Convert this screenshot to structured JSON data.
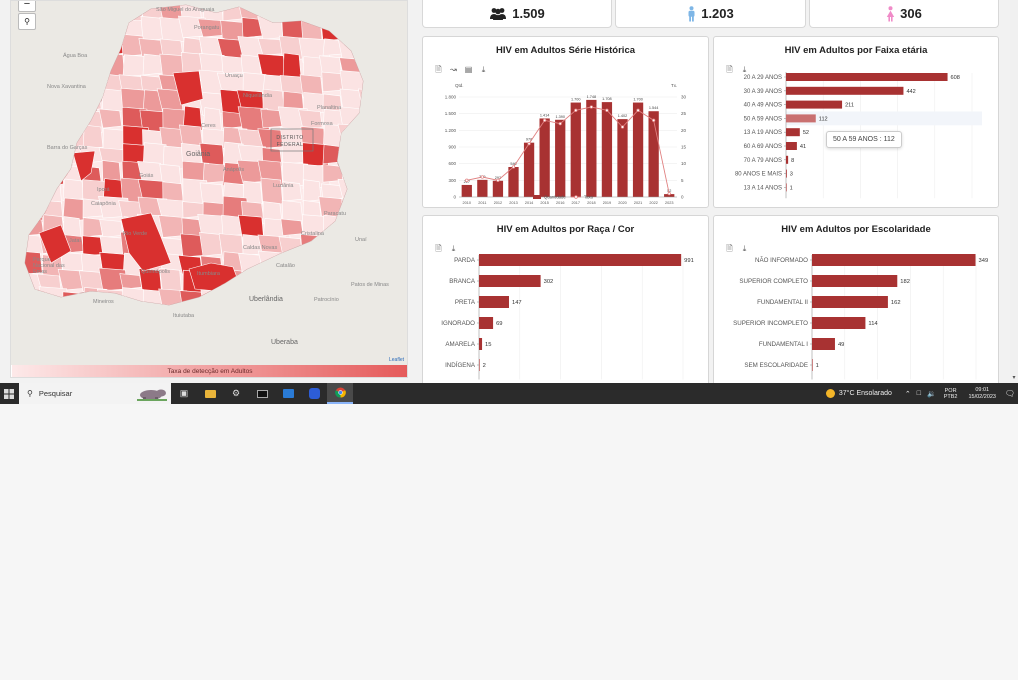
{
  "kpis": [
    {
      "value": "1.509",
      "icon": "people-group-icon",
      "color": "#222222"
    },
    {
      "value": "1.203",
      "icon": "male-person-icon",
      "color": "#7eb6e6"
    },
    {
      "value": "306",
      "icon": "female-person-icon",
      "color": "#f08bc8"
    }
  ],
  "map": {
    "zoom_out_symbol": "−",
    "search_symbol": "🔍",
    "places": [
      "São Miguel do Araguaia",
      "Água Boa",
      "Nova Xavantina",
      "Barra do Garças",
      "Mineiros",
      "Parque Nacional das Emas",
      "Jataí",
      "Rio Verde",
      "Goiás",
      "Goiânia",
      "Anápolis",
      "Catalão",
      "Uberlândia",
      "Uberaba",
      "Paracatu",
      "Patrocínio",
      "Patos de Minas",
      "Caldas Novas",
      "Itumbiara",
      "Formosa",
      "Planaltina",
      "Iporá",
      "Luziânia",
      "Ituiutaba",
      "Quirinópolis",
      "Cristalina",
      "Unaí",
      "Porangatu",
      "Niquelândia",
      "Ceres",
      "Uruaçu",
      "Caiapônia"
    ],
    "district_label": "DISTRITO FEDERAL",
    "attribution": "Leaflet",
    "legend_label": "Taxa de detecção em Adultos",
    "colors": {
      "low": "#fde9e9",
      "high": "#d9302f",
      "base": "#ebe9e4"
    }
  },
  "serie_historica": {
    "title": "HIV em Adultos Série Histórica",
    "toolbar": [
      "document-icon",
      "line-chart-icon",
      "bar-chart-icon",
      "download-icon"
    ],
    "left_axis_title": "Qtd.",
    "right_axis_title": "Tx.",
    "legend": [
      "Quantidade",
      "Taxa"
    ]
  },
  "faixa_etaria": {
    "title": "HIV em Adultos por Faixa etária",
    "toolbar": [
      "document-icon",
      "download-icon"
    ],
    "tooltip": "50 A 59 ANOS : 112"
  },
  "raca_cor": {
    "title": "HIV em Adultos por Raça / Cor",
    "toolbar": [
      "document-icon",
      "download-icon"
    ]
  },
  "escolaridade": {
    "title": "HIV em Adultos por Escolaridade",
    "toolbar": [
      "document-icon",
      "download-icon"
    ]
  },
  "chart_data": [
    {
      "type": "bar",
      "title": "HIV em Adultos Série Histórica",
      "categories": [
        "2010",
        "2011",
        "2012",
        "2013",
        "2014",
        "2015",
        "2016",
        "2017",
        "2018",
        "2019",
        "2020",
        "2021",
        "2022",
        "2023"
      ],
      "series": [
        {
          "name": "Quantidade",
          "type": "bar",
          "values": [
            217,
            309,
            292,
            540,
            978,
            1414,
            1390,
            1700,
            1748,
            1708,
            1402,
            1700,
            1544,
            52
          ]
        },
        {
          "name": "Taxa",
          "type": "line",
          "axis": "right",
          "values": [
            5,
            6,
            5,
            9,
            16,
            23,
            22,
            26,
            27,
            26,
            21,
            26,
            23,
            1
          ]
        }
      ],
      "ylim": [
        0,
        1800
      ],
      "yticks": [
        0,
        300,
        600,
        900,
        1200,
        1500,
        1800
      ],
      "ytick_labels": [
        "0",
        "300",
        "600",
        "900",
        "1.200",
        "1.500",
        "1.800"
      ],
      "y2lim": [
        0,
        30
      ],
      "y2ticks": [
        0,
        5,
        10,
        15,
        20,
        25,
        30
      ],
      "colors": {
        "bar": "#a83232",
        "line": "#e08080"
      },
      "legend_position": "bottom"
    },
    {
      "type": "bar",
      "orientation": "horizontal",
      "title": "HIV em Adultos por Faixa etária",
      "categories": [
        "20 A 29 ANOS",
        "30 A 39 ANOS",
        "40 A 49 ANOS",
        "50 A 59 ANOS",
        "13 A 19 ANOS",
        "60 A 69 ANOS",
        "70 A 79 ANOS",
        "80 ANOS E MAIS",
        "13 A 14 ANOS"
      ],
      "values": [
        608,
        442,
        211,
        112,
        52,
        41,
        8,
        3,
        1
      ],
      "xlim": [
        0,
        700
      ],
      "highlight": "50 A 59 ANOS",
      "colors": {
        "bar": "#a83232",
        "highlight": "#c97070"
      }
    },
    {
      "type": "bar",
      "orientation": "horizontal",
      "title": "HIV em Adultos por Raça / Cor",
      "categories": [
        "PARDA",
        "BRANCA",
        "PRETA",
        "IGNORADO",
        "AMARELA",
        "INDÍGENA"
      ],
      "values": [
        991,
        302,
        147,
        69,
        15,
        2
      ],
      "xlim": [
        0,
        1000
      ],
      "colors": {
        "bar": "#a83232"
      }
    },
    {
      "type": "bar",
      "orientation": "horizontal",
      "title": "HIV em Adultos por Escolaridade",
      "categories": [
        "NÃO INFORMADO",
        "SUPERIOR COMPLETO",
        "FUNDAMENTAL II",
        "SUPERIOR INCOMPLETO",
        "FUNDAMENTAL I",
        "SEM ESCOLARIDADE"
      ],
      "values": [
        349,
        182,
        162,
        114,
        49,
        1
      ],
      "xlim": [
        0,
        350
      ],
      "colors": {
        "bar": "#a83232"
      }
    }
  ],
  "taskbar": {
    "search_placeholder": "Pesquisar",
    "apps": [
      "task-view-icon",
      "file-explorer-icon",
      "settings-icon",
      "terminal-icon",
      "outlook-icon",
      "zoom-icon",
      "chrome-icon"
    ],
    "weather": "37°C  Ensolarado",
    "lang_1": "POR",
    "lang_2": "PTB2",
    "time": "09:01",
    "date": "15/02/2023"
  }
}
